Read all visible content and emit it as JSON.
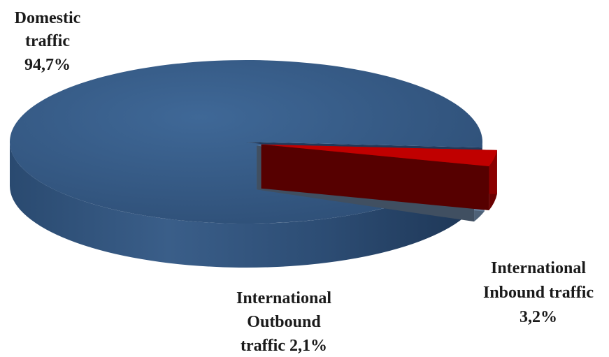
{
  "chart_data": {
    "type": "pie",
    "style": "3d-exploded",
    "slices": [
      {
        "label_lines": [
          "Domestic",
          "traffic",
          "94,7%"
        ],
        "value": 94.7,
        "color": "#3a5f8c",
        "exploded": false
      },
      {
        "label_lines": [
          "International",
          "Inbound traffic",
          "3,2%"
        ],
        "value": 3.2,
        "color": "#c00000",
        "exploded": true
      },
      {
        "label_lines": [
          "International",
          "Outbound",
          "traffic 2,1%"
        ],
        "value": 2.1,
        "color": "#8eb0d8",
        "exploded": true
      }
    ],
    "legend": "none"
  }
}
